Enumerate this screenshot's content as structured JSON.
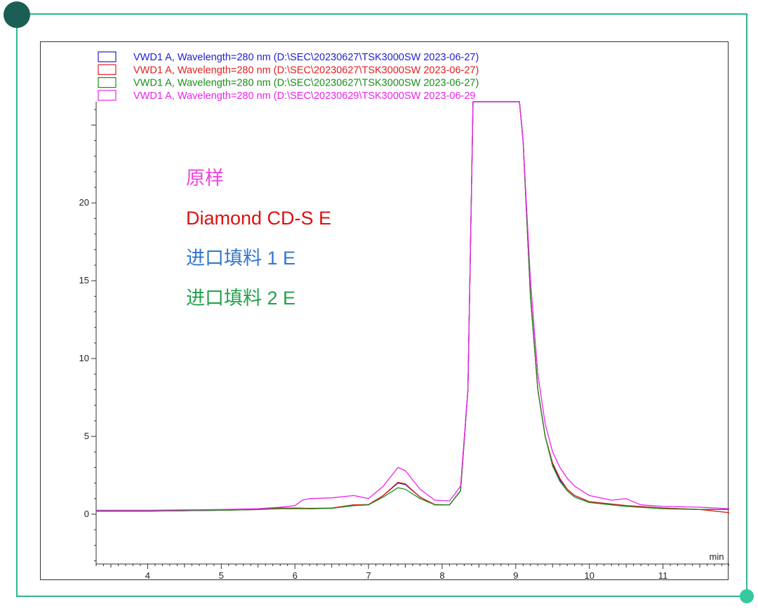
{
  "colors": {
    "frame": "#2fb58f",
    "frame_dot_top": "#1b5e56",
    "frame_dot_bottom": "#34c9a0"
  },
  "chart_data": {
    "type": "line",
    "xlabel": "",
    "x_unit": "min",
    "ylabel": "",
    "xlim": [
      3.3,
      11.9
    ],
    "ylim": [
      -3.2,
      26.5
    ],
    "x_ticks": [
      4,
      5,
      6,
      7,
      8,
      9,
      10,
      11
    ],
    "y_ticks": [
      0,
      5,
      10,
      15,
      20
    ],
    "grid": false,
    "legend_position": "top-left",
    "series": [
      {
        "name": "VWD1 A, Wavelength=280 nm (D:\\SEC\\20230627\\TSK3000SW 2023-06-27)",
        "color": "#1f1fd6",
        "points": [
          [
            3.3,
            0.2
          ],
          [
            4,
            0.2
          ],
          [
            5,
            0.25
          ],
          [
            5.5,
            0.3
          ],
          [
            5.8,
            0.4
          ],
          [
            6.0,
            0.4
          ],
          [
            6.2,
            0.35
          ],
          [
            6.5,
            0.38
          ],
          [
            6.8,
            0.6
          ],
          [
            7.0,
            0.6
          ],
          [
            7.2,
            1.2
          ],
          [
            7.4,
            2.0
          ],
          [
            7.5,
            1.9
          ],
          [
            7.7,
            1.1
          ],
          [
            7.9,
            0.6
          ],
          [
            8.1,
            0.6
          ],
          [
            8.25,
            1.5
          ],
          [
            8.35,
            8
          ],
          [
            8.42,
            26.5
          ],
          [
            8.48,
            26.5
          ],
          [
            8.55,
            26.5
          ],
          [
            8.9,
            26.5
          ],
          [
            9.05,
            26.5
          ],
          [
            9.1,
            24
          ],
          [
            9.2,
            14
          ],
          [
            9.3,
            8
          ],
          [
            9.4,
            5
          ],
          [
            9.5,
            3.2
          ],
          [
            9.6,
            2.2
          ],
          [
            9.7,
            1.6
          ],
          [
            9.8,
            1.2
          ],
          [
            10.0,
            0.8
          ],
          [
            10.5,
            0.55
          ],
          [
            11.0,
            0.4
          ],
          [
            11.5,
            0.3
          ],
          [
            11.9,
            0.3
          ]
        ]
      },
      {
        "name": "VWD1 A, Wavelength=280 nm (D:\\SEC\\20230627\\TSK3000SW 2023-06-27)",
        "color": "#e02020",
        "points": [
          [
            3.3,
            0.2
          ],
          [
            4,
            0.2
          ],
          [
            5,
            0.25
          ],
          [
            5.5,
            0.3
          ],
          [
            5.8,
            0.4
          ],
          [
            6.0,
            0.4
          ],
          [
            6.2,
            0.38
          ],
          [
            6.5,
            0.4
          ],
          [
            6.8,
            0.6
          ],
          [
            7.0,
            0.62
          ],
          [
            7.2,
            1.2
          ],
          [
            7.4,
            2.05
          ],
          [
            7.5,
            1.95
          ],
          [
            7.7,
            1.1
          ],
          [
            7.9,
            0.62
          ],
          [
            8.1,
            0.6
          ],
          [
            8.25,
            1.5
          ],
          [
            8.35,
            8
          ],
          [
            8.42,
            26.5
          ],
          [
            8.55,
            26.5
          ],
          [
            8.9,
            26.5
          ],
          [
            9.05,
            26.5
          ],
          [
            9.1,
            24
          ],
          [
            9.2,
            14
          ],
          [
            9.3,
            8
          ],
          [
            9.4,
            5
          ],
          [
            9.5,
            3.3
          ],
          [
            9.6,
            2.3
          ],
          [
            9.7,
            1.6
          ],
          [
            9.8,
            1.2
          ],
          [
            10.0,
            0.8
          ],
          [
            10.5,
            0.55
          ],
          [
            11.0,
            0.4
          ],
          [
            11.5,
            0.3
          ],
          [
            11.9,
            0.1
          ]
        ]
      },
      {
        "name": "VWD1 A, Wavelength=280 nm (D:\\SEC\\20230627\\TSK3000SW 2023-06-27)",
        "color": "#1a8f1a",
        "points": [
          [
            3.3,
            0.2
          ],
          [
            4,
            0.2
          ],
          [
            5,
            0.25
          ],
          [
            5.5,
            0.3
          ],
          [
            5.8,
            0.35
          ],
          [
            6.0,
            0.35
          ],
          [
            6.2,
            0.35
          ],
          [
            6.5,
            0.38
          ],
          [
            6.8,
            0.55
          ],
          [
            7.0,
            0.6
          ],
          [
            7.2,
            1.1
          ],
          [
            7.4,
            1.7
          ],
          [
            7.5,
            1.6
          ],
          [
            7.7,
            1.0
          ],
          [
            7.9,
            0.6
          ],
          [
            8.1,
            0.6
          ],
          [
            8.25,
            1.5
          ],
          [
            8.35,
            8
          ],
          [
            8.42,
            26.5
          ],
          [
            8.55,
            26.5
          ],
          [
            8.9,
            26.5
          ],
          [
            9.05,
            26.5
          ],
          [
            9.1,
            24
          ],
          [
            9.2,
            14
          ],
          [
            9.3,
            8
          ],
          [
            9.4,
            5
          ],
          [
            9.5,
            3.1
          ],
          [
            9.6,
            2.1
          ],
          [
            9.7,
            1.5
          ],
          [
            9.8,
            1.1
          ],
          [
            10.0,
            0.75
          ],
          [
            10.5,
            0.5
          ],
          [
            11.0,
            0.35
          ],
          [
            11.5,
            0.3
          ],
          [
            11.9,
            0.3
          ]
        ]
      },
      {
        "name": "VWD1 A, Wavelength=280 nm (D:\\SEC\\20230629\\TSK3000SW 2023-06-29",
        "color": "#ee22ee",
        "points": [
          [
            3.3,
            0.25
          ],
          [
            4,
            0.25
          ],
          [
            5,
            0.3
          ],
          [
            5.5,
            0.35
          ],
          [
            5.8,
            0.45
          ],
          [
            6.0,
            0.55
          ],
          [
            6.1,
            0.9
          ],
          [
            6.2,
            1.0
          ],
          [
            6.5,
            1.05
          ],
          [
            6.8,
            1.2
          ],
          [
            7.0,
            1.0
          ],
          [
            7.2,
            1.8
          ],
          [
            7.4,
            3.0
          ],
          [
            7.5,
            2.8
          ],
          [
            7.7,
            1.6
          ],
          [
            7.9,
            0.9
          ],
          [
            8.1,
            0.85
          ],
          [
            8.25,
            1.8
          ],
          [
            8.35,
            8
          ],
          [
            8.42,
            26.5
          ],
          [
            8.55,
            26.5
          ],
          [
            8.9,
            26.5
          ],
          [
            9.05,
            26.5
          ],
          [
            9.1,
            24
          ],
          [
            9.2,
            15
          ],
          [
            9.3,
            9
          ],
          [
            9.4,
            5.8
          ],
          [
            9.5,
            4.0
          ],
          [
            9.6,
            3.0
          ],
          [
            9.7,
            2.3
          ],
          [
            9.8,
            1.8
          ],
          [
            10.0,
            1.2
          ],
          [
            10.3,
            0.9
          ],
          [
            10.5,
            1.0
          ],
          [
            10.7,
            0.6
          ],
          [
            11.0,
            0.5
          ],
          [
            11.5,
            0.45
          ],
          [
            11.9,
            0.35
          ]
        ]
      }
    ],
    "annotations": [
      {
        "text": "原样",
        "color": "#ee44dd"
      },
      {
        "text": "Diamond CD-S E",
        "color": "#dd1111"
      },
      {
        "text": "进口填料 1 E",
        "color": "#3377cc"
      },
      {
        "text": "进口填料 2 E",
        "color": "#22a24a"
      }
    ]
  }
}
